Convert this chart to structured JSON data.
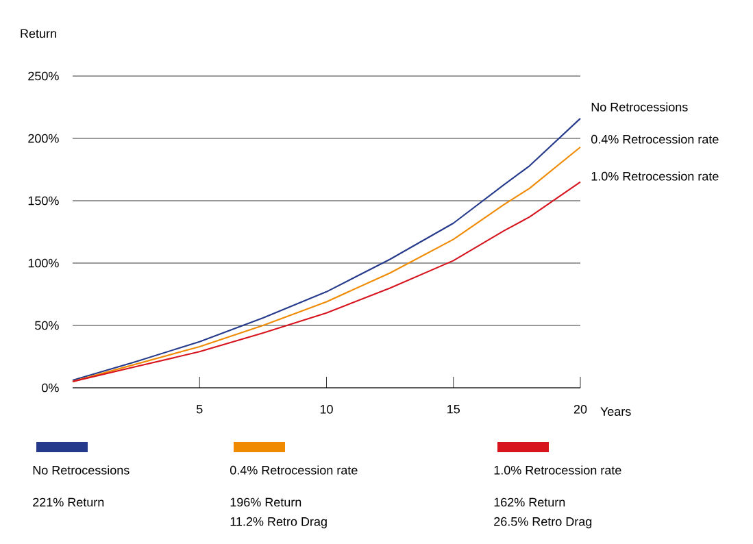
{
  "chart_data": {
    "type": "line",
    "xlabel": "Years",
    "ylabel": "Return",
    "x": [
      0,
      2.5,
      5,
      7.5,
      10,
      12.5,
      15,
      17,
      18,
      20
    ],
    "series": [
      {
        "name": "No Retrocessions",
        "color": "#263a8c",
        "values": [
          6,
          21,
          37,
          56,
          77,
          103,
          132,
          163,
          178,
          216
        ]
      },
      {
        "name": "0.4% Retrocession rate",
        "color": "#f08a00",
        "values": [
          5,
          19,
          33,
          50,
          69,
          92,
          119,
          147,
          160,
          193
        ]
      },
      {
        "name": "1.0% Retrocession rate",
        "color": "#d7141e",
        "values": [
          5,
          17,
          29,
          44,
          60,
          80,
          102,
          126,
          137,
          165
        ]
      }
    ],
    "xlim": [
      0,
      20
    ],
    "ylim": [
      0,
      250
    ],
    "xticks": [
      5,
      10,
      15,
      20
    ],
    "yticks": [
      {
        "value": 0,
        "label": "0%"
      },
      {
        "value": 50,
        "label": "50%"
      },
      {
        "value": 100,
        "label": "100%"
      },
      {
        "value": 150,
        "label": "150%"
      },
      {
        "value": 200,
        "label": "200%"
      },
      {
        "value": 250,
        "label": "250%"
      }
    ],
    "grid": "y",
    "legend": "bottom",
    "marker": "none",
    "line_style": "solid",
    "annotations": [
      "221% Return",
      "196% Return",
      "11.2% Retro Drag",
      "162% Return",
      "26.5% Retro Drag"
    ]
  }
}
